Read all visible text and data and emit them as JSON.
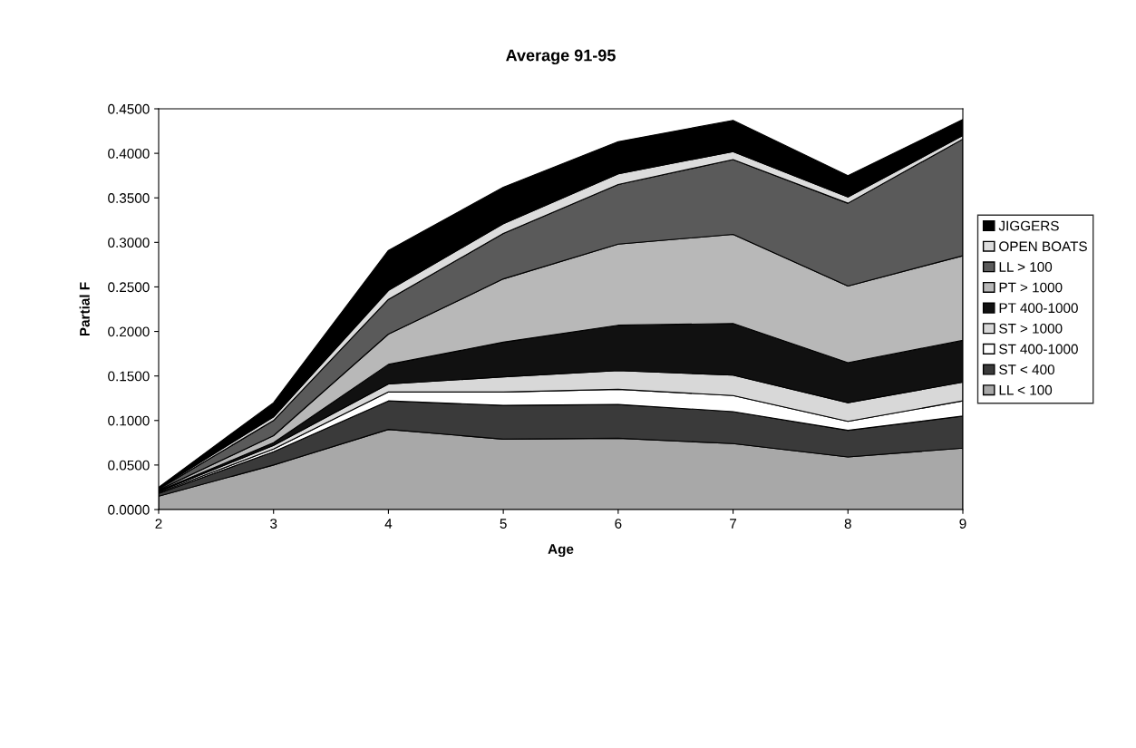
{
  "chart_data": {
    "type": "area",
    "stacked": true,
    "title": "Average 91-95",
    "xlabel": "Age",
    "ylabel": "Partial F",
    "x": [
      2,
      3,
      4,
      5,
      6,
      7,
      8,
      9
    ],
    "xlim": [
      2,
      9
    ],
    "xticks": [
      2,
      3,
      4,
      5,
      6,
      7,
      8,
      9
    ],
    "ylim": [
      0,
      0.45
    ],
    "yticks": [
      {
        "value": 0,
        "label": "0.0000"
      },
      {
        "value": 0.05,
        "label": "0.0500"
      },
      {
        "value": 0.1,
        "label": "0.1000"
      },
      {
        "value": 0.15,
        "label": "0.1500"
      },
      {
        "value": 0.2,
        "label": "0.2000"
      },
      {
        "value": 0.25,
        "label": "0.2500"
      },
      {
        "value": 0.3,
        "label": "0.3000"
      },
      {
        "value": 0.35,
        "label": "0.3500"
      },
      {
        "value": 0.4,
        "label": "0.4000"
      },
      {
        "value": 0.45,
        "label": "0.4500"
      }
    ],
    "grid": false,
    "legend": "right",
    "series": [
      {
        "name": "LL < 100",
        "color": "#a8a8a8",
        "values": [
          0.015,
          0.05,
          0.09,
          0.079,
          0.08,
          0.074,
          0.059,
          0.069
        ]
      },
      {
        "name": "ST < 400",
        "color": "#3a3a3a",
        "values": [
          0.003,
          0.015,
          0.032,
          0.038,
          0.038,
          0.036,
          0.03,
          0.036
        ]
      },
      {
        "name": "ST 400-1000",
        "color": "#ffffff",
        "values": [
          0.001,
          0.003,
          0.01,
          0.015,
          0.017,
          0.018,
          0.01,
          0.017
        ]
      },
      {
        "name": "ST > 1000",
        "color": "#d8d8d8",
        "values": [
          0.001,
          0.004,
          0.009,
          0.017,
          0.021,
          0.023,
          0.021,
          0.021
        ]
      },
      {
        "name": "PT 400-1000",
        "color": "#111111",
        "values": [
          0.001,
          0.003,
          0.022,
          0.039,
          0.051,
          0.058,
          0.045,
          0.047
        ]
      },
      {
        "name": "PT > 1000",
        "color": "#b8b8b8",
        "values": [
          0.001,
          0.008,
          0.034,
          0.071,
          0.091,
          0.1,
          0.086,
          0.095
        ]
      },
      {
        "name": "LL > 100",
        "color": "#5a5a5a",
        "values": [
          0.001,
          0.017,
          0.039,
          0.051,
          0.067,
          0.084,
          0.093,
          0.131
        ]
      },
      {
        "name": "OPEN BOATS",
        "color": "#dcdcdc",
        "values": [
          0.001,
          0.004,
          0.01,
          0.011,
          0.012,
          0.009,
          0.007,
          0.004
        ]
      },
      {
        "name": "JIGGERS",
        "color": "#000000",
        "values": [
          0.001,
          0.016,
          0.045,
          0.041,
          0.036,
          0.035,
          0.024,
          0.018
        ]
      }
    ]
  }
}
